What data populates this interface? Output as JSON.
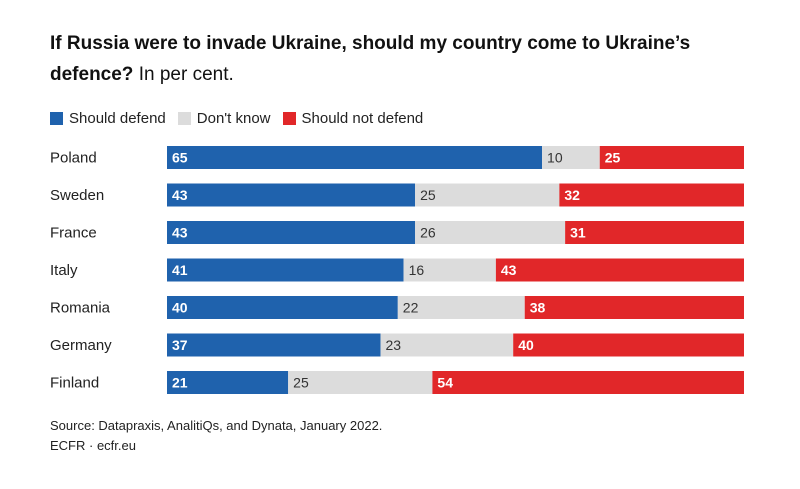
{
  "title": {
    "bold": "If Russia were to invade Ukraine, should my country come to Ukraine’s defence?",
    "normal": "In per cent."
  },
  "colors": {
    "defend": "#1f62ad",
    "dont_know": "#dcdcdc",
    "not_defend": "#e12729"
  },
  "chart_data": {
    "type": "bar",
    "orientation": "horizontal",
    "stacked": true,
    "title": "If Russia were to invade Ukraine, should my country come to Ukraine’s defence? In per cent.",
    "categories": [
      "Poland",
      "Sweden",
      "France",
      "Italy",
      "Romania",
      "Germany",
      "Finland"
    ],
    "series": [
      {
        "name": "Should defend",
        "values": [
          65,
          43,
          43,
          41,
          40,
          37,
          21
        ]
      },
      {
        "name": "Don't know",
        "values": [
          10,
          25,
          26,
          16,
          22,
          23,
          25
        ]
      },
      {
        "name": "Should not defend",
        "values": [
          25,
          32,
          31,
          43,
          38,
          40,
          54
        ]
      }
    ],
    "xlim": [
      0,
      100
    ],
    "legend_position": "top-left",
    "grid": false
  },
  "source": {
    "line1": "Source: Datapraxis, AnalitiQs, and Dynata, January 2022.",
    "line2": "ECFR · ecfr.eu"
  }
}
